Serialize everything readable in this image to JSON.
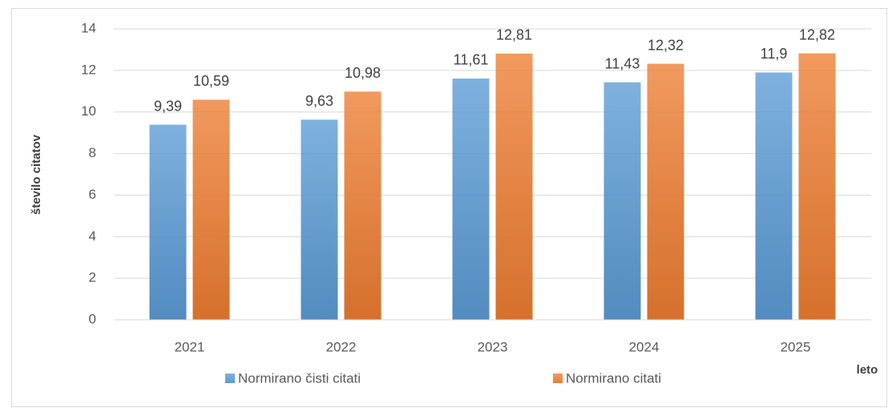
{
  "chart_data": {
    "type": "bar",
    "categories": [
      "2021",
      "2022",
      "2023",
      "2024",
      "2025"
    ],
    "series": [
      {
        "name": "Normirano čisti citati",
        "color": "#5b9bd5",
        "values": [
          9.39,
          9.63,
          11.61,
          11.43,
          11.9
        ],
        "value_labels": [
          "9,39",
          "9,63",
          "11,61",
          "11,43",
          "11,9"
        ]
      },
      {
        "name": "Normirano citati",
        "color": "#ed7d31",
        "values": [
          10.59,
          10.98,
          12.81,
          12.32,
          12.82
        ],
        "value_labels": [
          "10,59",
          "10,98",
          "12,81",
          "12,32",
          "12,82"
        ]
      }
    ],
    "ylabel": "število citatov",
    "xlabel": "leto",
    "ylim": [
      0,
      14
    ],
    "yticks": [
      0,
      2,
      4,
      6,
      8,
      10,
      12,
      14
    ],
    "grid": true
  }
}
